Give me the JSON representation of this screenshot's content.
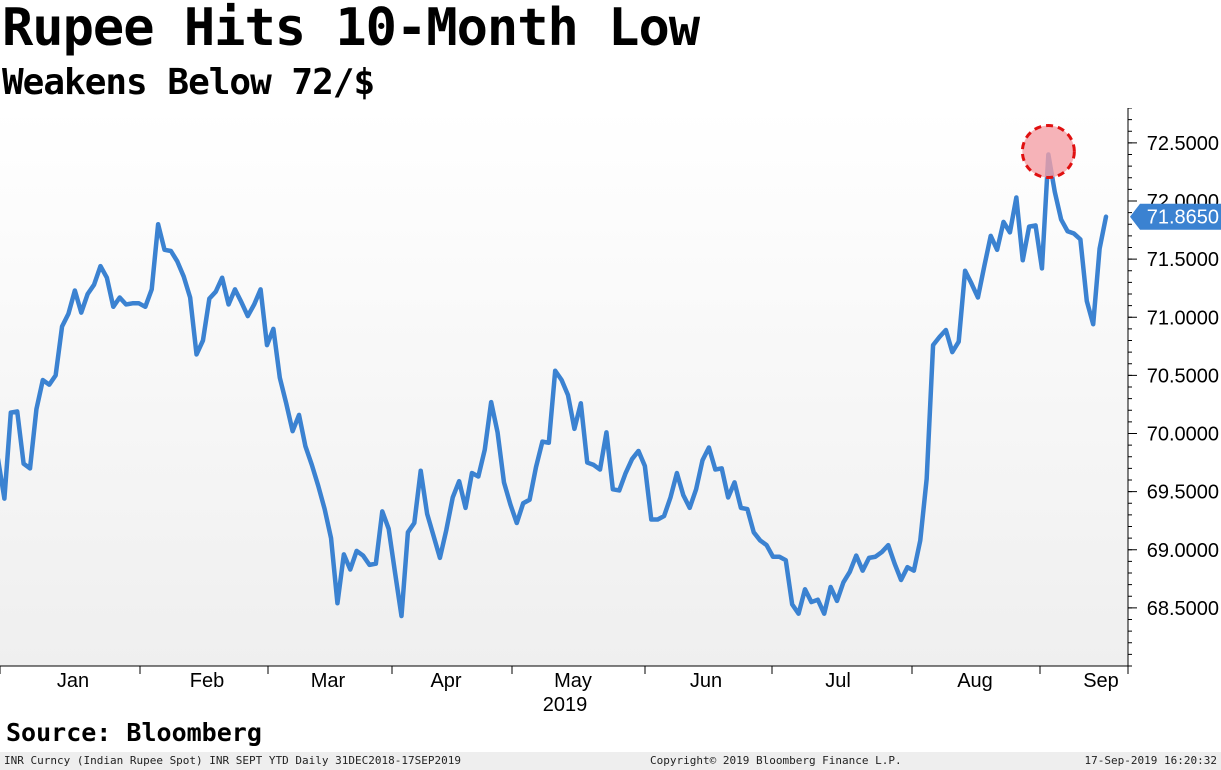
{
  "header": {
    "title": "Rupee Hits 10-Month Low",
    "subtitle": "Weakens Below 72/$"
  },
  "source": "Source: Bloomberg",
  "footer": {
    "left": "INR Curncy (Indian Rupee Spot) INR SEPT YTD  Daily 31DEC2018-17SEP2019",
    "center": "Copyright© 2019 Bloomberg Finance L.P.",
    "right": "17-Sep-2019 16:20:32"
  },
  "colors": {
    "line": "#3b82d1",
    "highlight_fill": "#f4a0a6",
    "highlight_stroke": "#e01010",
    "last_value_tag": "#3b82d1",
    "background_top": "#ffffff",
    "background_bottom": "#efefef"
  },
  "chart_data": {
    "type": "line",
    "title": "Rupee Hits 10-Month Low",
    "subtitle": "Weakens Below 72/$",
    "ylim": [
      68.0,
      72.8
    ],
    "y_ticks": [
      68.5,
      69.0,
      69.5,
      70.0,
      70.5,
      71.0,
      71.5,
      72.0,
      72.5
    ],
    "y_tick_labels": [
      "68.5000",
      "69.0000",
      "69.5000",
      "70.0000",
      "70.5000",
      "71.0000",
      "71.5000",
      "72.0000",
      "72.5000"
    ],
    "y_axis_side": "right",
    "x_ticks": [
      "Jan",
      "Feb",
      "Mar",
      "Apr",
      "May",
      "Jun",
      "Jul",
      "Aug",
      "Sep"
    ],
    "x_year_label": "2019",
    "grid": false,
    "last_value_label": "71.8650",
    "highlight": "circle at peak (~72.4) in Aug-Sep",
    "series": [
      {
        "values": [
          69.78,
          69.44,
          70.18,
          70.19,
          69.74,
          69.7,
          70.21,
          70.46,
          70.42,
          70.5,
          70.92,
          71.03,
          71.23,
          71.04,
          71.2,
          71.28,
          71.44,
          71.34,
          71.09,
          71.17,
          71.11,
          71.12,
          71.12,
          71.09,
          71.24,
          71.8,
          71.58,
          71.57,
          71.48,
          71.35,
          71.17,
          70.68,
          70.8,
          71.16,
          71.22,
          71.34,
          71.11,
          71.24,
          71.13,
          71.01,
          71.11,
          71.24,
          70.76,
          70.9,
          70.48,
          70.26,
          70.02,
          70.16,
          69.89,
          69.73,
          69.55,
          69.35,
          69.1,
          68.54,
          68.96,
          68.83,
          68.99,
          68.95,
          68.87,
          68.88,
          69.33,
          69.18,
          68.8,
          68.43,
          69.15,
          69.23,
          69.68,
          69.31,
          69.12,
          68.93,
          69.17,
          69.45,
          69.59,
          69.36,
          69.66,
          69.63,
          69.86,
          70.27,
          70.01,
          69.58,
          69.39,
          69.23,
          69.4,
          69.43,
          69.71,
          69.93,
          69.92,
          70.54,
          70.46,
          70.33,
          70.04,
          70.26,
          69.75,
          69.73,
          69.69,
          70.01,
          69.52,
          69.51,
          69.66,
          69.78,
          69.85,
          69.72,
          69.26,
          69.26,
          69.29,
          69.45,
          69.66,
          69.47,
          69.36,
          69.52,
          69.77,
          69.88,
          69.69,
          69.7,
          69.45,
          69.58,
          69.36,
          69.35,
          69.15,
          69.08,
          69.04,
          68.94,
          68.94,
          68.91,
          68.53,
          68.45,
          68.66,
          68.55,
          68.57,
          68.45,
          68.68,
          68.56,
          68.72,
          68.81,
          68.95,
          68.82,
          68.93,
          68.94,
          68.98,
          69.04,
          68.88,
          68.74,
          68.85,
          68.82,
          69.08,
          69.61,
          70.76,
          70.83,
          70.89,
          70.7,
          70.79,
          71.4,
          71.29,
          71.17,
          71.44,
          71.7,
          71.58,
          71.82,
          71.73,
          72.03,
          71.49,
          71.78,
          71.79,
          71.42,
          72.4,
          72.08,
          71.84,
          71.74,
          71.72,
          71.67,
          71.14,
          70.94,
          71.59,
          71.865
        ]
      }
    ]
  }
}
